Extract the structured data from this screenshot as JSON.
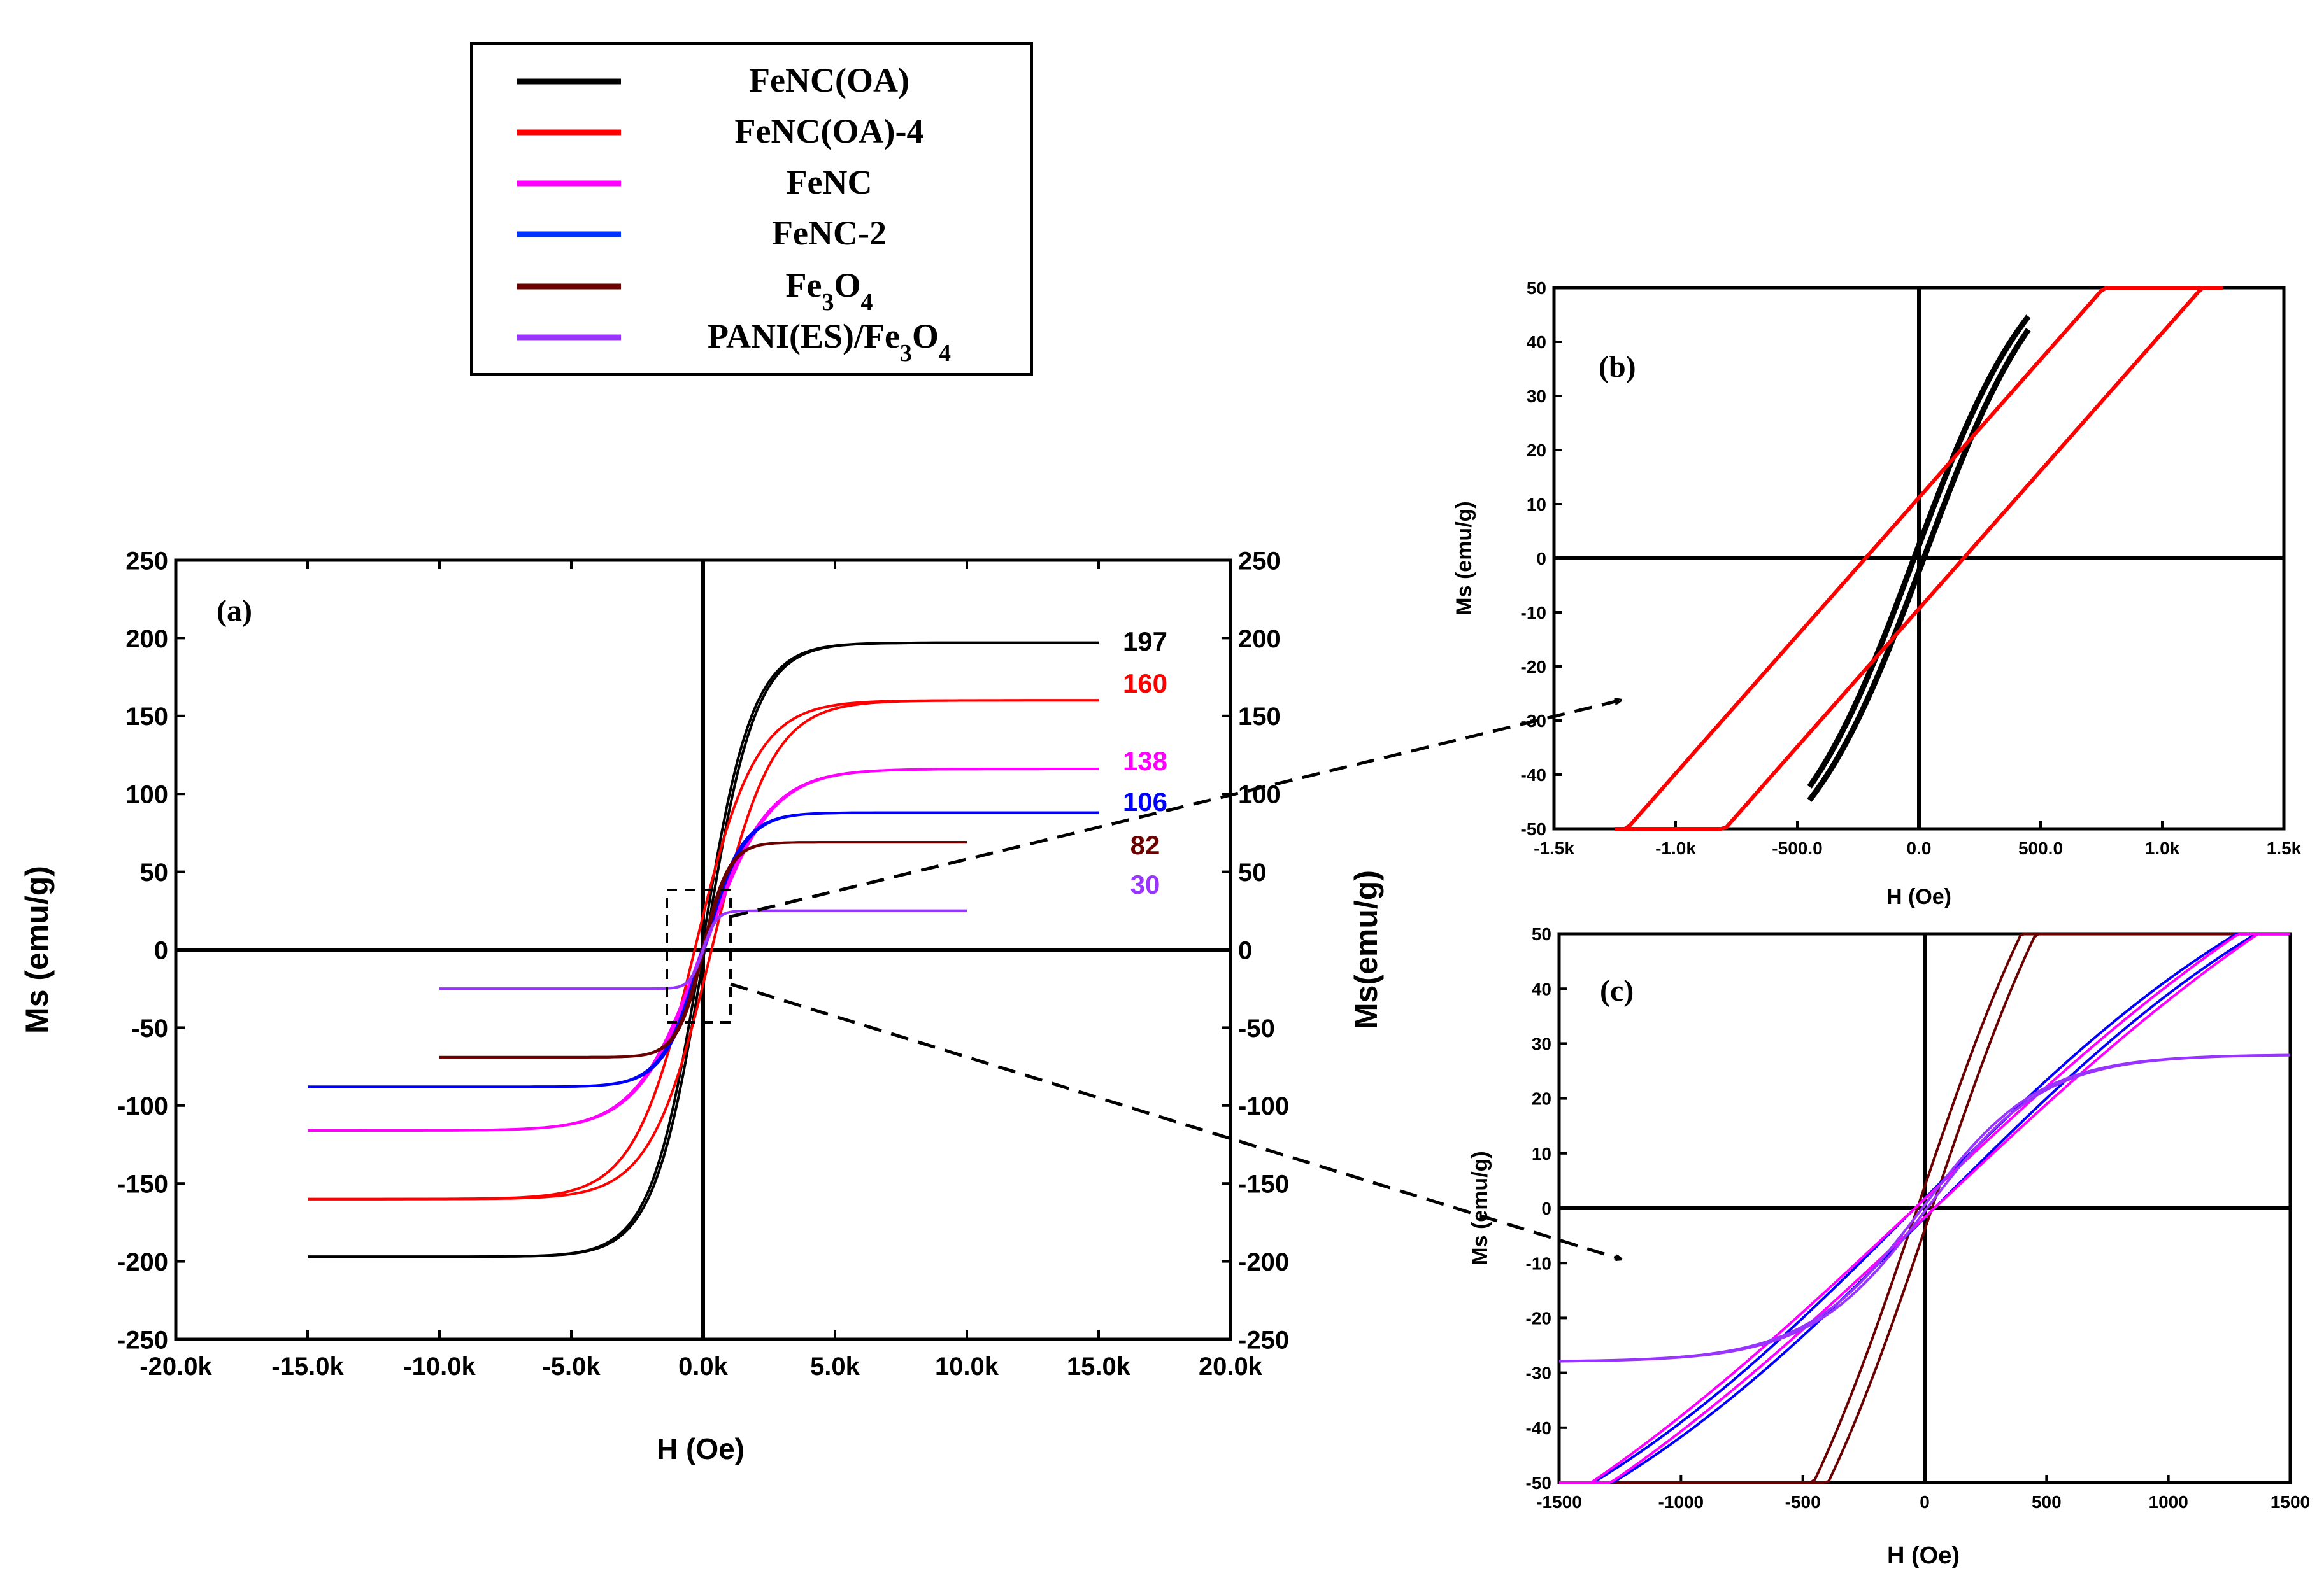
{
  "legend": {
    "entries": [
      {
        "label": "FeNC(OA)",
        "color": "#000000"
      },
      {
        "label": "FeNC(OA)-4",
        "color": "#ff0000"
      },
      {
        "label": "FeNC",
        "color": "#ff00ff"
      },
      {
        "label": "FeNC-2",
        "color": "#0033ff"
      },
      {
        "label": "Fe3O4",
        "base": "Fe",
        "sub1": "3",
        "mid": "O",
        "sub2": "4",
        "color": "#6b0000"
      },
      {
        "label": "PANI(ES)/Fe3O4",
        "base": "PANI(ES)/Fe",
        "sub1": "3",
        "mid": "O",
        "sub2": "4",
        "color": "#9933ff"
      }
    ]
  },
  "chart_data": [
    {
      "id": "a",
      "panel_label": "(a)",
      "type": "line",
      "xlabel": "H (Oe)",
      "ylabel": "Ms (emu/g)",
      "y2label": "Ms(emu/g)",
      "xlim": [
        -20000,
        20000
      ],
      "ylim": [
        -250,
        250
      ],
      "xticks": [
        -20000,
        -15000,
        -10000,
        -5000,
        0,
        5000,
        10000,
        15000,
        20000
      ],
      "xtick_labels": [
        "-20.0k",
        "-15.0k",
        "-10.0k",
        "-5.0k",
        "0.0k",
        "5.0k",
        "10.0k",
        "15.0k",
        "20.0k"
      ],
      "yticks": [
        -250,
        -200,
        -150,
        -100,
        -50,
        0,
        50,
        100,
        150,
        200,
        250
      ],
      "ytick_labels": [
        "-250",
        "-200",
        "-150",
        "-100",
        "-50",
        "0",
        "50",
        "100",
        "150",
        "200",
        "250"
      ],
      "series": [
        {
          "name": "FeNC(OA)",
          "color": "#000000",
          "ms": 197,
          "hmax": 15000,
          "a": 1900,
          "hc": 60,
          "annotation": "197",
          "anno_color": "#000000"
        },
        {
          "name": "FeNC(OA)-4",
          "color": "#ff0000",
          "ms": 160,
          "hmax": 15000,
          "a": 2300,
          "hc": 320,
          "annotation": "160",
          "anno_color": "#ff0000"
        },
        {
          "name": "FeNC",
          "color": "#ff00ff",
          "ms": 116,
          "hmax": 15000,
          "a": 2500,
          "hc": 40,
          "annotation": "138",
          "anno_color": "#ff00ff"
        },
        {
          "name": "FeNC-2",
          "color": "#0000ff",
          "ms": 88,
          "hmax": 15000,
          "a": 1500,
          "hc": 40,
          "annotation": "106",
          "anno_color": "#0000ff"
        },
        {
          "name": "Fe3O4",
          "color": "#6b0000",
          "ms": 69,
          "hmax": 10000,
          "a": 1000,
          "hc": 30,
          "annotation": "82",
          "anno_color": "#6b0000"
        },
        {
          "name": "PANI(ES)/Fe3O4",
          "color": "#9933ff",
          "ms": 25,
          "hmax": 10000,
          "a": 500,
          "hc": 10,
          "annotation": "30",
          "anno_color": "#9933ff"
        }
      ]
    },
    {
      "id": "b",
      "panel_label": "(b)",
      "type": "line",
      "xlabel": "H (Oe)",
      "ylabel": "Ms (emu/g)",
      "xlim": [
        -1500,
        1500
      ],
      "ylim": [
        -50,
        50
      ],
      "xticks": [
        -1500,
        -1000,
        -500,
        0,
        500,
        1000,
        1500
      ],
      "xtick_labels": [
        "-1.5k",
        "-1.0k",
        "-500.0",
        "0.0",
        "500.0",
        "1.0k",
        "1.5k"
      ],
      "yticks": [
        -50,
        -40,
        -30,
        -20,
        -10,
        0,
        10,
        20,
        30,
        40,
        50
      ],
      "ytick_labels": [
        "-50",
        "-40",
        "-30",
        "-20",
        "-10",
        "0",
        "10",
        "20",
        "30",
        "40",
        "50"
      ],
      "series": [
        {
          "name": "FeNC(OA)",
          "color": "#000000",
          "slope": 0.12,
          "hc": 20,
          "x_start": -450,
          "x_end": 450
        },
        {
          "name": "FeNC(OA)-4",
          "color": "#ff0000",
          "slope": 0.051,
          "hc": 280,
          "shift": -60,
          "x_start": -1250,
          "x_end": 1250
        }
      ]
    },
    {
      "id": "c",
      "panel_label": "(c)",
      "type": "line",
      "xlabel": "H (Oe)",
      "ylabel": "Ms (emu/g)",
      "xlim": [
        -1500,
        1500
      ],
      "ylim": [
        -50,
        50
      ],
      "xticks": [
        -1500,
        -1000,
        -500,
        0,
        500,
        1000,
        1500
      ],
      "xtick_labels": [
        "-1500",
        "-1000",
        "-500",
        "0",
        "500",
        "1000",
        "1500"
      ],
      "yticks": [
        -50,
        -40,
        -30,
        -20,
        -10,
        0,
        10,
        20,
        30,
        40,
        50
      ],
      "ytick_labels": [
        "-50",
        "-40",
        "-30",
        "-20",
        "-10",
        "0",
        "10",
        "20",
        "30",
        "40",
        "50"
      ],
      "series": [
        {
          "name": "Fe3O4",
          "color": "#6b0000",
          "ms": 69,
          "a": 1000,
          "hc": 30
        },
        {
          "name": "FeNC-2",
          "color": "#0000ff",
          "ms": 88,
          "a": 1500,
          "hc": 40
        },
        {
          "name": "FeNC",
          "color": "#ff00ff",
          "ms": 116,
          "a": 2500,
          "hc": 40
        },
        {
          "name": "PANI(ES)/Fe3O4",
          "color": "#9933ff",
          "ms": 25,
          "a": 500,
          "hc": 10
        }
      ]
    }
  ]
}
